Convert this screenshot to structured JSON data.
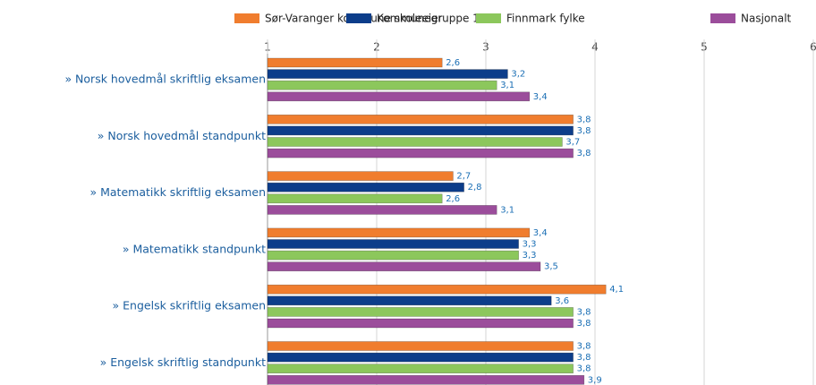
{
  "chart_data": {
    "type": "hbar",
    "categories": [
      "» Norsk hovedmål skriftlig eksamen",
      "» Norsk hovedmål standpunkt",
      "» Matematikk skriftlig eksamen",
      "» Matematikk standpunkt",
      "» Engelsk skriftlig eksamen",
      "» Engelsk skriftlig standpunkt"
    ],
    "series": [
      {
        "name": "Sør-Varanger kommune skoleeier",
        "color": "#f07d2e",
        "values": [
          2.6,
          3.8,
          2.7,
          3.4,
          4.1,
          3.8
        ],
        "value_labels": [
          "2,6",
          "3,8",
          "2,7",
          "3,4",
          "4,1",
          "3,8"
        ]
      },
      {
        "name": "Kommunegruppe 12",
        "color": "#0c3d8a",
        "values": [
          3.2,
          3.8,
          2.8,
          3.3,
          3.6,
          3.8
        ],
        "value_labels": [
          "3,2",
          "3,8",
          "2,8",
          "3,3",
          "3,6",
          "3,8"
        ]
      },
      {
        "name": "Finnmark fylke",
        "color": "#8cc75c",
        "values": [
          3.1,
          3.7,
          2.6,
          3.3,
          3.8,
          3.8
        ],
        "value_labels": [
          "3,1",
          "3,7",
          "2,6",
          "3,3",
          "3,8",
          "3,8"
        ]
      },
      {
        "name": "Nasjonalt",
        "color": "#9b4d9b",
        "values": [
          3.4,
          3.8,
          3.1,
          3.5,
          3.8,
          3.9
        ],
        "value_labels": [
          "3,4",
          "3,8",
          "3,1",
          "3,5",
          "3,8",
          "3,9"
        ]
      }
    ],
    "xlim": [
      1,
      6
    ],
    "xticks": [
      1,
      2,
      3,
      4,
      5,
      6
    ],
    "grid": true,
    "legend": "top"
  }
}
